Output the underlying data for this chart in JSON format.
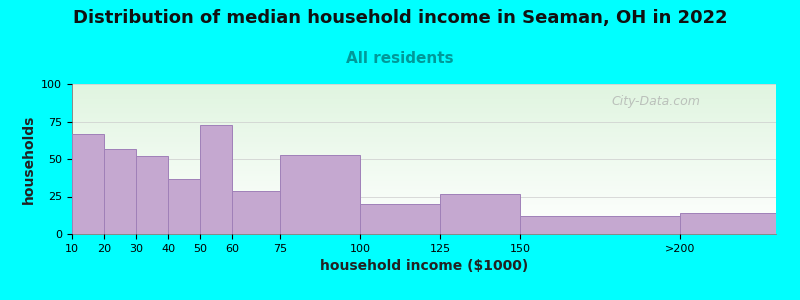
{
  "title": "Distribution of median household income in Seaman, OH in 2022",
  "subtitle": "All residents",
  "xlabel": "household income ($1000)",
  "ylabel": "households",
  "background_color": "#00FFFF",
  "bar_color": "#c5a8d0",
  "bar_edge_color": "#a080b8",
  "categories": [
    "10",
    "20",
    "30",
    "40",
    "50",
    "60",
    "75",
    "100",
    "125",
    "150",
    ">200"
  ],
  "left_edges": [
    10,
    20,
    30,
    40,
    50,
    60,
    75,
    100,
    125,
    150,
    200
  ],
  "widths": [
    10,
    10,
    10,
    10,
    10,
    15,
    25,
    25,
    25,
    50,
    30
  ],
  "values": [
    67,
    57,
    52,
    37,
    73,
    29,
    53,
    20,
    27,
    12,
    14
  ],
  "xlim": [
    10,
    230
  ],
  "ylim": [
    0,
    100
  ],
  "yticks": [
    0,
    25,
    50,
    75,
    100
  ],
  "xtick_positions": [
    10,
    20,
    30,
    40,
    50,
    60,
    75,
    100,
    125,
    150,
    200
  ],
  "xtick_labels": [
    "10",
    "20",
    "30",
    "40",
    "50",
    "60",
    "75",
    "100",
    "125",
    "150",
    ">200"
  ],
  "title_fontsize": 13,
  "subtitle_fontsize": 11,
  "axis_label_fontsize": 10,
  "tick_fontsize": 8,
  "watermark": "City-Data.com"
}
